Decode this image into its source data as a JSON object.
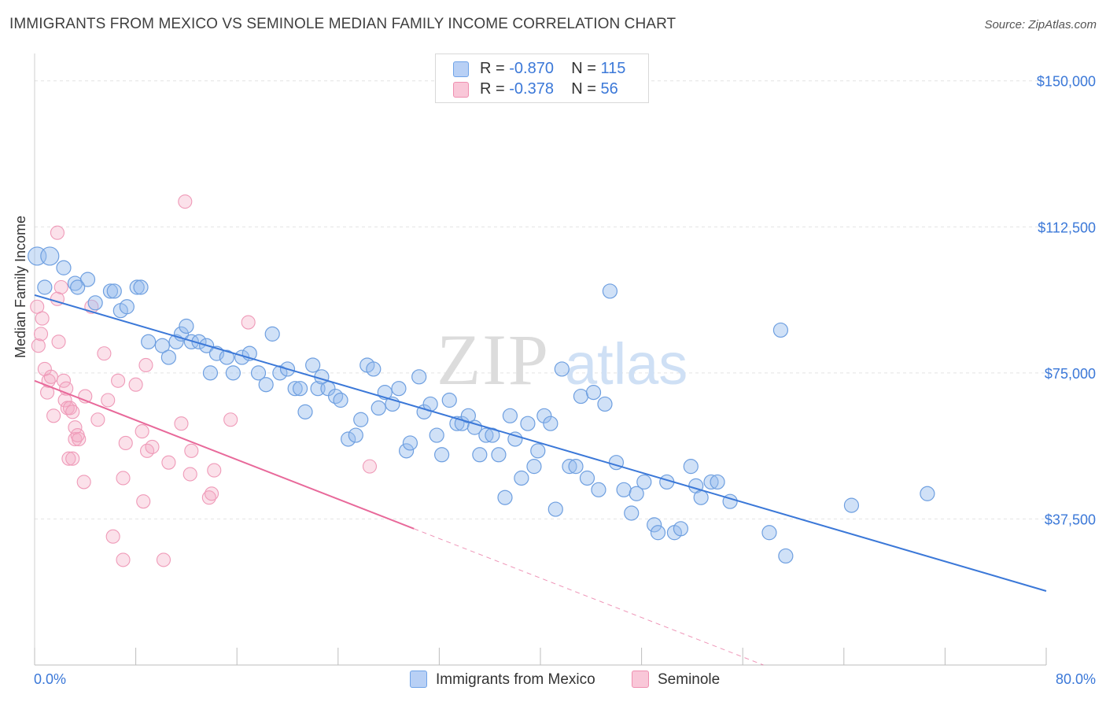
{
  "header": {
    "title": "IMMIGRANTS FROM MEXICO VS SEMINOLE MEDIAN FAMILY INCOME CORRELATION CHART",
    "source": "Source: ZipAtlas.com"
  },
  "watermark": {
    "zip": "ZIP",
    "atlas": "atlas"
  },
  "legend": {
    "rows": [
      {
        "r_label": "R = ",
        "r_value": "-0.870",
        "n_label": "N = ",
        "n_value": "115",
        "color": "#6fa3e8",
        "fill": "#b8d0f5"
      },
      {
        "r_label": "R = ",
        "r_value": "-0.378",
        "n_label": "N = ",
        "n_value": "56",
        "color": "#ef8fb0",
        "fill": "#f9c7d8"
      }
    ]
  },
  "bottom_legend": [
    {
      "label": "Immigrants from Mexico"
    },
    {
      "label": "Seminole"
    }
  ],
  "chart_data": {
    "type": "scatter",
    "title": "IMMIGRANTS FROM MEXICO VS SEMINOLE MEDIAN FAMILY INCOME CORRELATION CHART",
    "xlabel": "",
    "ylabel": "Median Family Income",
    "xlim": [
      0,
      80
    ],
    "ylim": [
      0,
      155000
    ],
    "x_tick_labels": [
      "0.0%",
      "80.0%"
    ],
    "y_ticks": [
      37500,
      75000,
      112500,
      150000
    ],
    "y_tick_labels": [
      "$37,500",
      "$75,000",
      "$112,500",
      "$150,000"
    ],
    "grid": true,
    "legend_position": "top-center",
    "colors": {
      "mexico": "#3b78d8",
      "seminole": "#e8699a",
      "tick_label": "#3b78d8"
    },
    "series": [
      {
        "name": "Immigrants from Mexico",
        "r": -0.87,
        "n": 115,
        "trend": {
          "x": [
            0,
            80
          ],
          "y": [
            95000,
            19000
          ]
        },
        "points": [
          [
            0.2,
            105000
          ],
          [
            1.2,
            105000
          ],
          [
            0.8,
            97000
          ],
          [
            2.3,
            102000
          ],
          [
            3.2,
            98000
          ],
          [
            4.2,
            99000
          ],
          [
            3.4,
            97000
          ],
          [
            4.8,
            93000
          ],
          [
            6.0,
            96000
          ],
          [
            6.3,
            96000
          ],
          [
            6.8,
            91000
          ],
          [
            7.3,
            92000
          ],
          [
            8.1,
            97000
          ],
          [
            8.4,
            97000
          ],
          [
            9.0,
            83000
          ],
          [
            10.1,
            82000
          ],
          [
            10.6,
            79000
          ],
          [
            11.2,
            83000
          ],
          [
            11.6,
            85000
          ],
          [
            12.0,
            87000
          ],
          [
            12.4,
            83000
          ],
          [
            13.0,
            83000
          ],
          [
            13.6,
            82000
          ],
          [
            14.4,
            80000
          ],
          [
            13.9,
            75000
          ],
          [
            15.2,
            79000
          ],
          [
            15.7,
            75000
          ],
          [
            16.4,
            79000
          ],
          [
            17.0,
            80000
          ],
          [
            17.7,
            75000
          ],
          [
            18.3,
            72000
          ],
          [
            18.8,
            85000
          ],
          [
            19.4,
            75000
          ],
          [
            20.0,
            76000
          ],
          [
            20.6,
            71000
          ],
          [
            21.0,
            71000
          ],
          [
            21.4,
            65000
          ],
          [
            22.0,
            77000
          ],
          [
            22.4,
            71000
          ],
          [
            22.7,
            74000
          ],
          [
            23.2,
            71000
          ],
          [
            23.8,
            69000
          ],
          [
            24.2,
            68000
          ],
          [
            24.8,
            58000
          ],
          [
            25.4,
            59000
          ],
          [
            25.8,
            63000
          ],
          [
            26.3,
            77000
          ],
          [
            26.8,
            76000
          ],
          [
            27.2,
            66000
          ],
          [
            27.7,
            70000
          ],
          [
            28.3,
            67000
          ],
          [
            28.8,
            71000
          ],
          [
            29.4,
            55000
          ],
          [
            29.7,
            57000
          ],
          [
            30.4,
            74000
          ],
          [
            30.8,
            65000
          ],
          [
            31.3,
            67000
          ],
          [
            31.8,
            59000
          ],
          [
            32.2,
            54000
          ],
          [
            32.8,
            68000
          ],
          [
            33.4,
            62000
          ],
          [
            33.8,
            62000
          ],
          [
            34.3,
            64000
          ],
          [
            34.8,
            61000
          ],
          [
            35.2,
            54000
          ],
          [
            35.7,
            59000
          ],
          [
            36.2,
            59000
          ],
          [
            36.7,
            54000
          ],
          [
            37.2,
            43000
          ],
          [
            37.6,
            64000
          ],
          [
            38.0,
            58000
          ],
          [
            38.5,
            48000
          ],
          [
            39.0,
            62000
          ],
          [
            39.5,
            51000
          ],
          [
            39.8,
            55000
          ],
          [
            40.3,
            64000
          ],
          [
            40.8,
            62000
          ],
          [
            41.2,
            40000
          ],
          [
            41.7,
            76000
          ],
          [
            42.3,
            51000
          ],
          [
            42.8,
            51000
          ],
          [
            43.2,
            69000
          ],
          [
            43.7,
            48000
          ],
          [
            44.2,
            70000
          ],
          [
            44.6,
            45000
          ],
          [
            45.1,
            67000
          ],
          [
            45.5,
            96000
          ],
          [
            46.0,
            52000
          ],
          [
            46.6,
            45000
          ],
          [
            47.2,
            39000
          ],
          [
            47.6,
            44000
          ],
          [
            48.2,
            47000
          ],
          [
            49.0,
            36000
          ],
          [
            49.3,
            34000
          ],
          [
            50.0,
            47000
          ],
          [
            50.6,
            34000
          ],
          [
            51.1,
            35000
          ],
          [
            51.9,
            51000
          ],
          [
            52.3,
            46000
          ],
          [
            52.7,
            43000
          ],
          [
            53.5,
            47000
          ],
          [
            54.0,
            47000
          ],
          [
            55.0,
            42000
          ],
          [
            58.1,
            34000
          ],
          [
            59.4,
            28000
          ],
          [
            59.0,
            86000
          ],
          [
            64.6,
            41000
          ],
          [
            70.6,
            44000
          ]
        ]
      },
      {
        "name": "Seminole",
        "r": -0.378,
        "n": 56,
        "trend": {
          "x": [
            0,
            30
          ],
          "y": [
            73000,
            35000
          ]
        },
        "points": [
          [
            0.2,
            92000
          ],
          [
            0.3,
            82000
          ],
          [
            0.5,
            85000
          ],
          [
            0.6,
            89000
          ],
          [
            0.8,
            76000
          ],
          [
            1.0,
            70000
          ],
          [
            1.1,
            73000
          ],
          [
            1.3,
            74000
          ],
          [
            1.5,
            64000
          ],
          [
            1.8,
            111000
          ],
          [
            1.8,
            94000
          ],
          [
            1.9,
            83000
          ],
          [
            2.1,
            97000
          ],
          [
            2.3,
            73000
          ],
          [
            2.4,
            68000
          ],
          [
            2.5,
            71000
          ],
          [
            2.6,
            66000
          ],
          [
            2.7,
            53000
          ],
          [
            2.8,
            66000
          ],
          [
            3.0,
            65000
          ],
          [
            3.0,
            53000
          ],
          [
            3.2,
            58000
          ],
          [
            3.2,
            61000
          ],
          [
            3.4,
            59000
          ],
          [
            3.5,
            58000
          ],
          [
            3.9,
            47000
          ],
          [
            4.0,
            69000
          ],
          [
            4.5,
            92000
          ],
          [
            5.0,
            63000
          ],
          [
            5.5,
            80000
          ],
          [
            5.8,
            68000
          ],
          [
            6.2,
            33000
          ],
          [
            6.6,
            73000
          ],
          [
            7.0,
            27000
          ],
          [
            7.0,
            48000
          ],
          [
            7.2,
            57000
          ],
          [
            8.0,
            72000
          ],
          [
            8.5,
            60000
          ],
          [
            8.6,
            42000
          ],
          [
            8.8,
            77000
          ],
          [
            8.9,
            55000
          ],
          [
            9.3,
            56000
          ],
          [
            10.2,
            27000
          ],
          [
            10.6,
            52000
          ],
          [
            11.6,
            62000
          ],
          [
            11.9,
            119000
          ],
          [
            12.3,
            49000
          ],
          [
            12.4,
            55000
          ],
          [
            13.8,
            43000
          ],
          [
            14.0,
            44000
          ],
          [
            14.2,
            50000
          ],
          [
            15.5,
            63000
          ],
          [
            16.9,
            88000
          ],
          [
            26.5,
            51000
          ]
        ]
      }
    ]
  }
}
